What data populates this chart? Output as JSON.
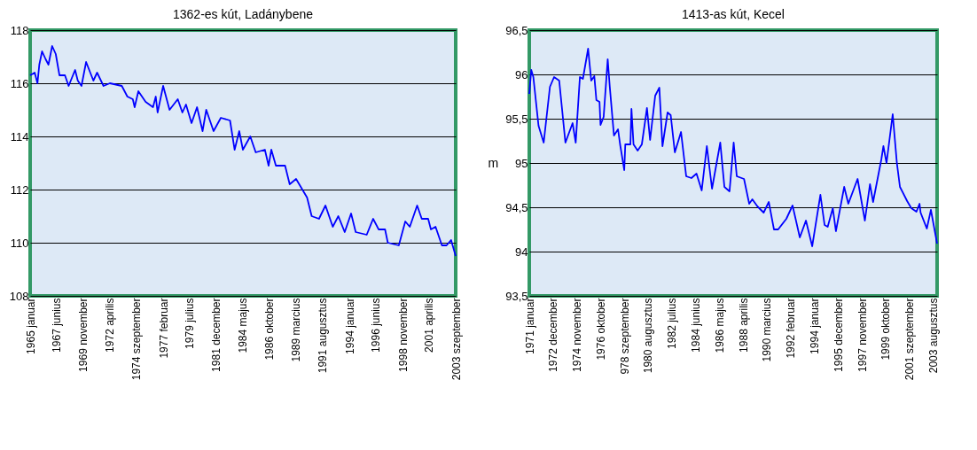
{
  "chart_data": [
    {
      "type": "line",
      "title": "1362-es kút, Ladánybene",
      "grid": "y",
      "marker": "none",
      "line_style": "solid",
      "xlim": [
        "1965-01",
        "2003-09"
      ],
      "ylim": [
        108,
        118
      ],
      "yticks": [
        108,
        110,
        112,
        114,
        116,
        118
      ],
      "xticks": [
        {
          "value": "1965-01",
          "label": "1965 januar"
        },
        {
          "value": "1967-06",
          "label": "1967 junius"
        },
        {
          "value": "1969-11",
          "label": "1969 november"
        },
        {
          "value": "1972-04",
          "label": "1972 aprilis"
        },
        {
          "value": "1974-09",
          "label": "1974 szeptember"
        },
        {
          "value": "1977-02",
          "label": "1977 februar"
        },
        {
          "value": "1979-07",
          "label": "1979 julius"
        },
        {
          "value": "1981-12",
          "label": "1981 december"
        },
        {
          "value": "1984-05",
          "label": "1984 majus"
        },
        {
          "value": "1986-10",
          "label": "1986 oktober"
        },
        {
          "value": "1989-03",
          "label": "1989 marcius"
        },
        {
          "value": "1991-08",
          "label": "1991 augusztus"
        },
        {
          "value": "1994-01",
          "label": "1994 januar"
        },
        {
          "value": "1996-06",
          "label": "1996 junius"
        },
        {
          "value": "1998-11",
          "label": "1998 november"
        },
        {
          "value": "2001-04",
          "label": "2001 aprilis"
        },
        {
          "value": "2003-09",
          "label": "2003 szeptember"
        }
      ],
      "series": [
        {
          "color": "#0000ff",
          "x": [
            "1965-01",
            "1965-06",
            "1965-09",
            "1965-11",
            "1966-02",
            "1966-06",
            "1966-09",
            "1967-01",
            "1967-05",
            "1967-09",
            "1968-03",
            "1968-07",
            "1969-02",
            "1969-05",
            "1969-09",
            "1970-02",
            "1970-10",
            "1971-02",
            "1971-09",
            "1972-04",
            "1973-05",
            "1973-11",
            "1974-05",
            "1974-07",
            "1974-11",
            "1975-07",
            "1976-03",
            "1976-06",
            "1976-08",
            "1977-02",
            "1977-09",
            "1978-06",
            "1978-11",
            "1979-03",
            "1979-09",
            "1980-03",
            "1980-09",
            "1981-01",
            "1981-09",
            "1982-05",
            "1983-03",
            "1983-08",
            "1984-01",
            "1984-05",
            "1985-01",
            "1985-07",
            "1986-05",
            "1986-09",
            "1986-12",
            "1987-05",
            "1988-03",
            "1988-08",
            "1989-03",
            "1990-03",
            "1990-08",
            "1991-04",
            "1991-11",
            "1992-07",
            "1993-01",
            "1993-08",
            "1994-03",
            "1994-08",
            "1995-08",
            "1996-03",
            "1996-09",
            "1997-04",
            "1997-07",
            "1998-07",
            "1999-02",
            "1999-07",
            "2000-03",
            "2000-08",
            "2001-03",
            "2001-06",
            "2001-11",
            "2002-06",
            "2002-11",
            "2003-04",
            "2003-09"
          ],
          "values": [
            116.3,
            116.4,
            116.0,
            116.7,
            117.2,
            116.9,
            116.7,
            117.4,
            117.1,
            116.3,
            116.3,
            115.9,
            116.5,
            116.1,
            115.9,
            116.8,
            116.1,
            116.4,
            115.9,
            116.0,
            115.9,
            115.5,
            115.4,
            115.1,
            115.7,
            115.3,
            115.1,
            115.5,
            114.9,
            115.9,
            115.0,
            115.4,
            114.9,
            115.2,
            114.5,
            115.1,
            114.2,
            115.0,
            114.2,
            114.7,
            114.6,
            113.5,
            114.2,
            113.5,
            114.0,
            113.4,
            113.5,
            112.9,
            113.5,
            112.9,
            112.9,
            112.2,
            112.4,
            111.7,
            111.0,
            110.9,
            111.4,
            110.6,
            111.0,
            110.4,
            111.1,
            110.4,
            110.3,
            110.9,
            110.5,
            110.5,
            110.0,
            109.9,
            110.8,
            110.6,
            111.4,
            110.9,
            110.9,
            110.5,
            110.6,
            109.9,
            109.9,
            110.1,
            109.5
          ]
        }
      ]
    },
    {
      "type": "line",
      "title": "1413-as kút, Kecel",
      "ylabel": "m",
      "grid": "y",
      "marker": "none",
      "line_style": "solid",
      "xlim": [
        "1971-01",
        "2003-12"
      ],
      "ylim": [
        93.5,
        96.5
      ],
      "yticks": [
        {
          "value": 93.5,
          "label": "93,5"
        },
        {
          "value": 94,
          "label": "94"
        },
        {
          "value": 94.5,
          "label": "94,5"
        },
        {
          "value": 95,
          "label": "95"
        },
        {
          "value": 95.5,
          "label": "95,5"
        },
        {
          "value": 96,
          "label": "96"
        },
        {
          "value": 96.5,
          "label": "96,5"
        }
      ],
      "xticks": [
        {
          "value": "1971-01",
          "label": "1971 januar"
        },
        {
          "value": "1972-12",
          "label": "1972 december"
        },
        {
          "value": "1974-11",
          "label": "1974 november"
        },
        {
          "value": "1976-10",
          "label": "1976 oktober"
        },
        {
          "value": "1978-09",
          "label": "978 szeptember"
        },
        {
          "value": "1980-08",
          "label": "1980 augusztus"
        },
        {
          "value": "1982-07",
          "label": "1982 julius"
        },
        {
          "value": "1984-06",
          "label": "1984 junius"
        },
        {
          "value": "1986-05",
          "label": "1986 majus"
        },
        {
          "value": "1988-04",
          "label": "1988 aprilis"
        },
        {
          "value": "1990-03",
          "label": "1990 marcius"
        },
        {
          "value": "1992-02",
          "label": "1992 februar"
        },
        {
          "value": "1994-01",
          "label": "1994 januar"
        },
        {
          "value": "1995-12",
          "label": "1995 december"
        },
        {
          "value": "1997-11",
          "label": "1997 november"
        },
        {
          "value": "1999-10",
          "label": "1999 oktober"
        },
        {
          "value": "2001-09",
          "label": "2001 szeptember"
        },
        {
          "value": "2003-08",
          "label": "2003 augusztus"
        }
      ],
      "series": [
        {
          "color": "#0000ff",
          "x": [
            "1971-01",
            "1971-03",
            "1971-05",
            "1971-10",
            "1972-03",
            "1972-09",
            "1973-01",
            "1973-06",
            "1973-12",
            "1974-07",
            "1974-10",
            "1975-02",
            "1975-05",
            "1975-10",
            "1976-01",
            "1976-04",
            "1976-06",
            "1976-09",
            "1976-10",
            "1977-01",
            "1977-05",
            "1977-07",
            "1977-11",
            "1978-03",
            "1978-05",
            "1978-09",
            "1978-10",
            "1979-03",
            "1979-04",
            "1979-06",
            "1979-10",
            "1980-02",
            "1980-07",
            "1980-10",
            "1981-03",
            "1981-07",
            "1981-10",
            "1982-03",
            "1982-06",
            "1982-10",
            "1983-04",
            "1983-09",
            "1984-02",
            "1984-07",
            "1984-12",
            "1985-05",
            "1985-10",
            "1986-06",
            "1986-10",
            "1987-03",
            "1987-07",
            "1987-10",
            "1988-05",
            "1988-10",
            "1989-01",
            "1989-06",
            "1989-12",
            "1990-05",
            "1990-10",
            "1991-02",
            "1991-10",
            "1992-04",
            "1992-11",
            "1993-05",
            "1993-11",
            "1994-07",
            "1994-11",
            "1995-02",
            "1995-07",
            "1995-10",
            "1996-06",
            "1996-10",
            "1997-07",
            "1998-02",
            "1998-07",
            "1998-10",
            "1999-06",
            "1999-08",
            "1999-11",
            "2000-05",
            "2000-09",
            "2000-12",
            "2001-07",
            "2001-11",
            "2002-04",
            "2002-07",
            "2002-08",
            "2003-02",
            "2003-06",
            "2003-12"
          ],
          "values": [
            95.78,
            96.05,
            95.97,
            95.42,
            95.23,
            95.86,
            95.97,
            95.93,
            95.23,
            95.45,
            95.23,
            95.97,
            95.95,
            96.29,
            95.93,
            95.98,
            95.71,
            95.69,
            95.43,
            95.52,
            96.17,
            95.86,
            95.31,
            95.38,
            95.21,
            94.92,
            95.21,
            95.21,
            95.61,
            95.21,
            95.14,
            95.21,
            95.62,
            95.26,
            95.76,
            95.85,
            95.19,
            95.57,
            95.54,
            95.12,
            95.35,
            94.85,
            94.83,
            94.88,
            94.69,
            95.19,
            94.71,
            95.23,
            94.73,
            94.68,
            95.23,
            94.85,
            94.82,
            94.54,
            94.59,
            94.51,
            94.44,
            94.56,
            94.25,
            94.25,
            94.37,
            94.52,
            94.16,
            94.35,
            94.06,
            94.64,
            94.3,
            94.28,
            94.49,
            94.23,
            94.73,
            94.54,
            94.82,
            94.35,
            94.76,
            94.56,
            95.04,
            95.19,
            95.0,
            95.55,
            95.0,
            94.73,
            94.57,
            94.49,
            94.45,
            94.54,
            94.44,
            94.26,
            94.47,
            94.09
          ]
        }
      ]
    }
  ]
}
